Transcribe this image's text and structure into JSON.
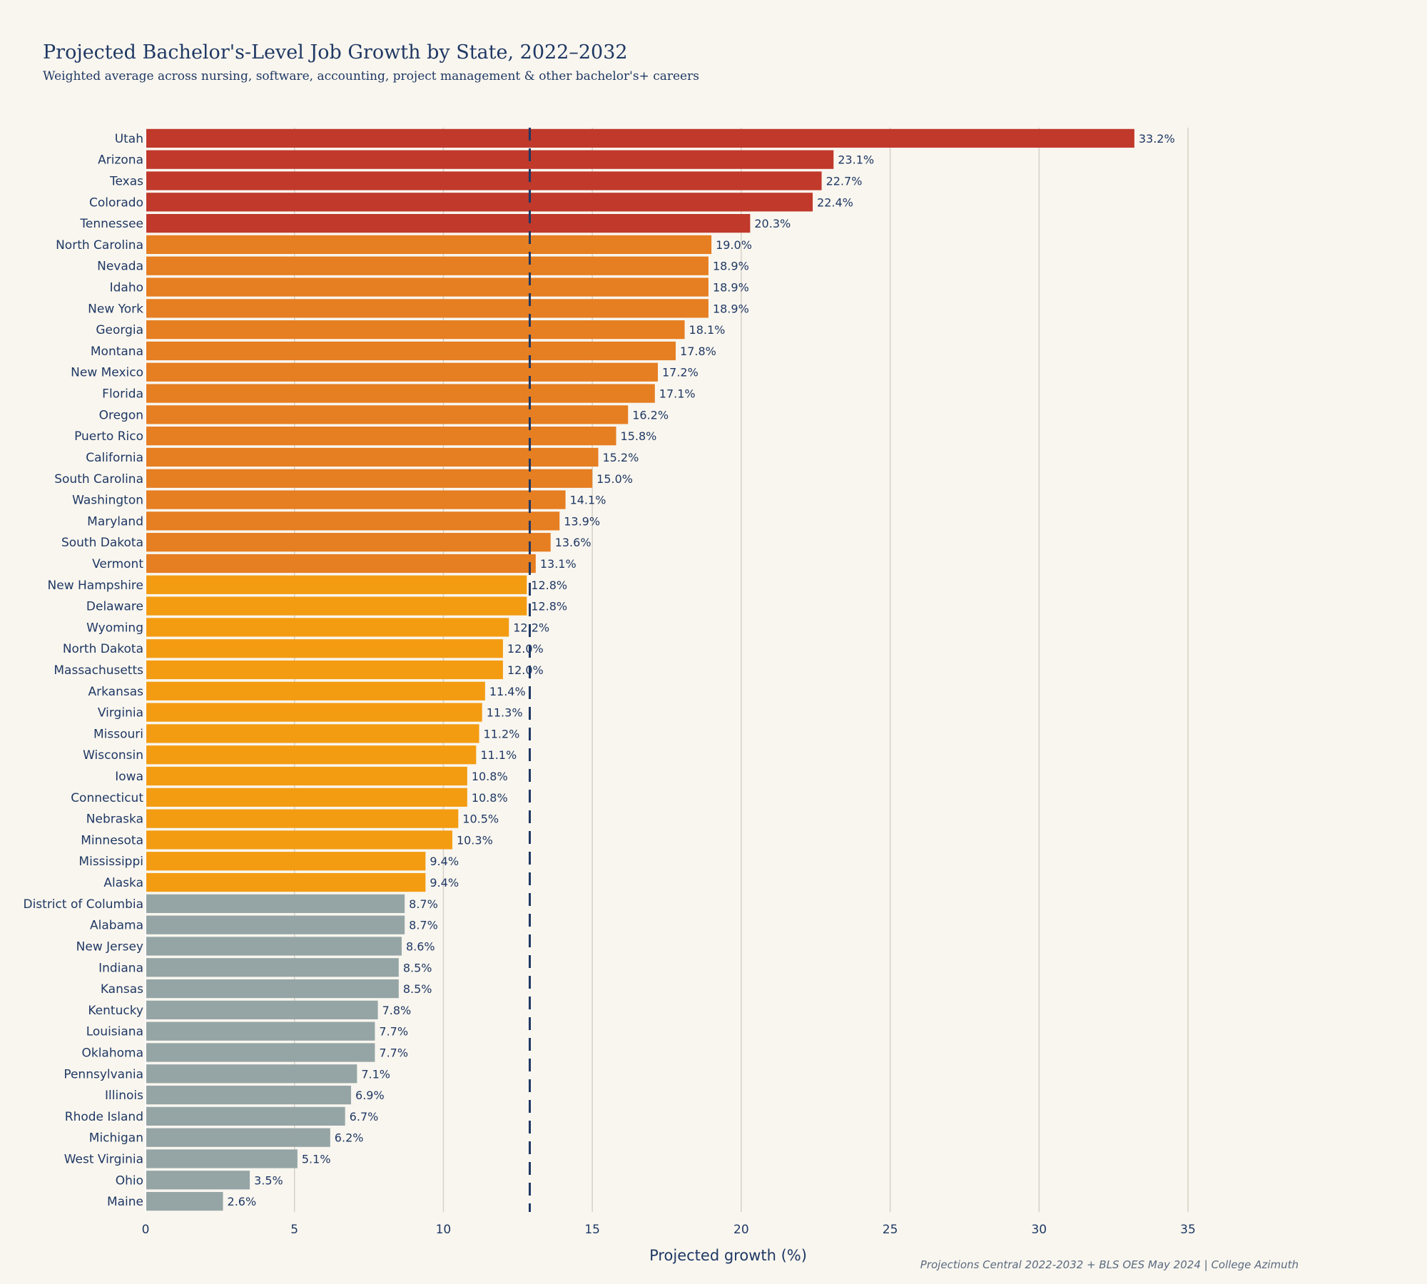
{
  "chart_data": {
    "type": "bar",
    "orientation": "horizontal",
    "title": "Projected Bachelor's-Level Job Growth by State, 2022–2032",
    "subtitle": "Weighted average across nursing, software, accounting, project management & other bachelor's+ careers",
    "xlabel": "Projected growth (%)",
    "ylabel": "",
    "xlim": [
      0,
      35
    ],
    "xticks": [
      0,
      5,
      10,
      15,
      20,
      25,
      30,
      35
    ],
    "grid": true,
    "legend": "none",
    "reference_line": 12.9,
    "source": "Projections Central 2022-2032 + BLS OES May 2024 | College Azimuth",
    "colors": {
      "high": "#c0392b",
      "upper": "#e67e22",
      "mid": "#f39c12",
      "low": "#95a5a6",
      "text": "#1f3864",
      "grid": "#d6d1c6"
    },
    "categories": [
      "Utah",
      "Arizona",
      "Texas",
      "Colorado",
      "Tennessee",
      "North Carolina",
      "Nevada",
      "Idaho",
      "New York",
      "Georgia",
      "Montana",
      "New Mexico",
      "Florida",
      "Oregon",
      "Puerto Rico",
      "California",
      "South Carolina",
      "Washington",
      "Maryland",
      "South Dakota",
      "Vermont",
      "New Hampshire",
      "Delaware",
      "Wyoming",
      "North Dakota",
      "Massachusetts",
      "Arkansas",
      "Virginia",
      "Missouri",
      "Wisconsin",
      "Iowa",
      "Connecticut",
      "Nebraska",
      "Minnesota",
      "Mississippi",
      "Alaska",
      "District of Columbia",
      "Alabama",
      "New Jersey",
      "Indiana",
      "Kansas",
      "Kentucky",
      "Louisiana",
      "Oklahoma",
      "Pennsylvania",
      "Illinois",
      "Rhode Island",
      "Michigan",
      "West Virginia",
      "Ohio",
      "Maine"
    ],
    "values": [
      33.2,
      23.1,
      22.7,
      22.4,
      20.3,
      19.0,
      18.9,
      18.9,
      18.9,
      18.1,
      17.8,
      17.2,
      17.1,
      16.2,
      15.8,
      15.2,
      15.0,
      14.1,
      13.9,
      13.6,
      13.1,
      12.8,
      12.8,
      12.2,
      12.0,
      12.0,
      11.4,
      11.3,
      11.2,
      11.1,
      10.8,
      10.8,
      10.5,
      10.3,
      9.4,
      9.4,
      8.7,
      8.7,
      8.6,
      8.5,
      8.5,
      7.8,
      7.7,
      7.7,
      7.1,
      6.9,
      6.7,
      6.2,
      5.1,
      3.5,
      2.6
    ],
    "labels": [
      "33.2%",
      "23.1%",
      "22.7%",
      "22.4%",
      "20.3%",
      "19.0%",
      "18.9%",
      "18.9%",
      "18.9%",
      "18.1%",
      "17.8%",
      "17.2%",
      "17.1%",
      "16.2%",
      "15.8%",
      "15.2%",
      "15.0%",
      "14.1%",
      "13.9%",
      "13.6%",
      "13.1%",
      "12.8%",
      "12.8%",
      "12.2%",
      "12.0%",
      "12.0%",
      "11.4%",
      "11.3%",
      "11.2%",
      "11.1%",
      "10.8%",
      "10.8%",
      "10.5%",
      "10.3%",
      "9.4%",
      "9.4%",
      "8.7%",
      "8.7%",
      "8.6%",
      "8.5%",
      "8.5%",
      "7.8%",
      "7.7%",
      "7.7%",
      "7.1%",
      "6.9%",
      "6.7%",
      "6.2%",
      "5.1%",
      "3.5%",
      "2.6%"
    ]
  }
}
